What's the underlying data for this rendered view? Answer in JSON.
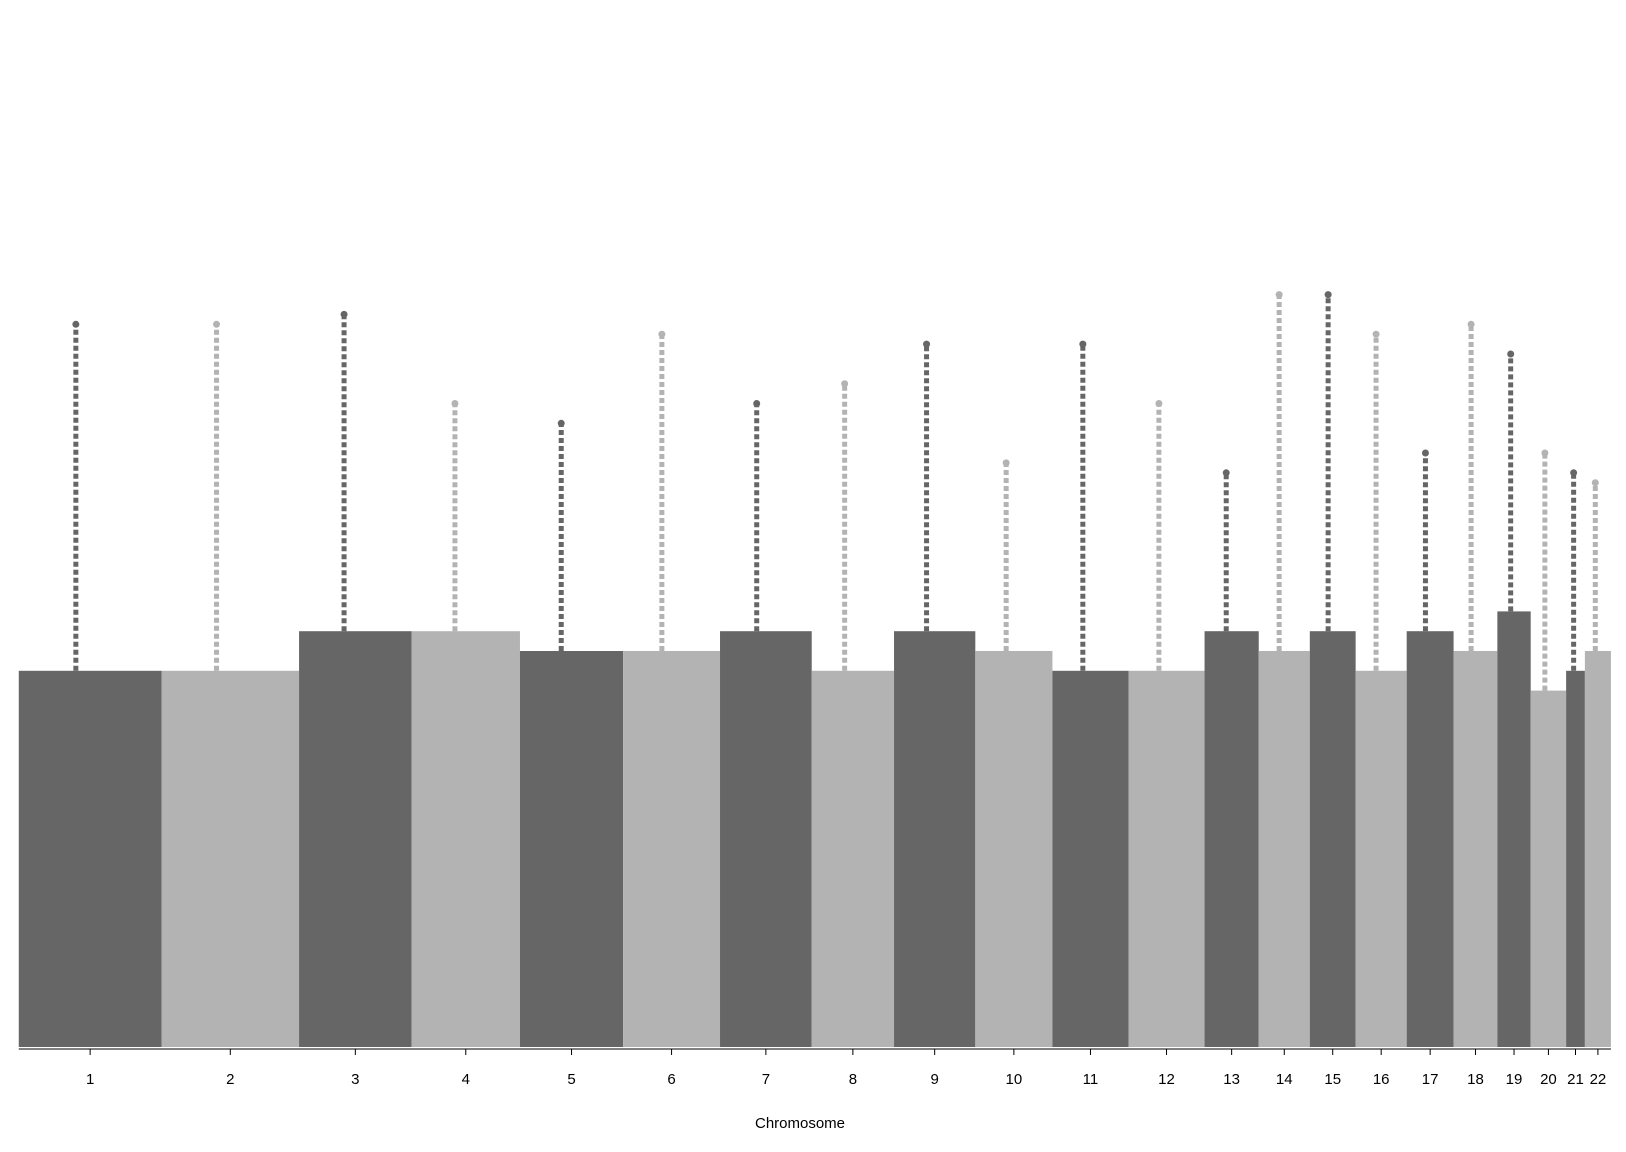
{
  "chart_data": {
    "type": "manhattan",
    "xlabel": "Chromosome",
    "categories": [
      "1",
      "2",
      "3",
      "4",
      "5",
      "6",
      "7",
      "8",
      "9",
      "10",
      "11",
      "12",
      "13",
      "14",
      "15",
      "16",
      "17",
      "18",
      "19",
      "20",
      "21",
      "22"
    ],
    "series": [
      {
        "values": [
          3.8,
          3.8,
          4.2,
          4.2,
          4.0,
          4.0,
          4.2,
          3.8,
          4.2,
          4.0,
          3.8,
          3.8,
          4.2,
          4.0,
          4.2,
          3.8,
          4.2,
          4.0,
          4.4,
          3.6,
          3.8,
          4.0
        ]
      },
      {
        "values": [
          7.3,
          7.3,
          7.4,
          6.5,
          6.3,
          7.2,
          6.5,
          6.7,
          7.1,
          5.9,
          7.1,
          6.5,
          5.8,
          7.6,
          7.6,
          7.2,
          6.0,
          7.3,
          7.0,
          6.0,
          5.8,
          5.7
        ]
      }
    ],
    "colors": [
      "#666666",
      "#b3b3b3"
    ],
    "ylim": [
      0,
      10
    ]
  }
}
